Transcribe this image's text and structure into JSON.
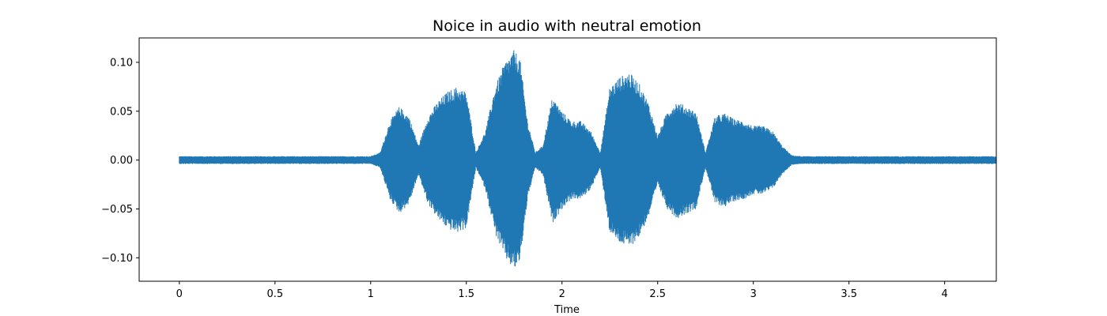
{
  "chart_data": {
    "type": "area",
    "title": "Noice in audio with neutral emotion",
    "xlabel": "Time",
    "ylabel": "",
    "xlim": [
      -0.21,
      4.27
    ],
    "ylim": [
      -0.124,
      0.125
    ],
    "x_ticks": [
      0,
      0.5,
      1,
      1.5,
      2,
      2.5,
      3,
      3.5,
      4
    ],
    "x_tick_labels": [
      "0",
      "0.5",
      "1",
      "1.5",
      "2",
      "2.5",
      "3",
      "3.5",
      "4"
    ],
    "y_ticks": [
      -0.1,
      -0.05,
      0.0,
      0.05,
      0.1
    ],
    "y_tick_labels": [
      "−0.10",
      "−0.05",
      "0.00",
      "0.05",
      "0.10"
    ],
    "grid": false,
    "legend": "none",
    "color": "#1f77b4",
    "series": [
      {
        "x": [
          0.0,
          0.5,
          1.0,
          1.05,
          1.1,
          1.15,
          1.2,
          1.25,
          1.3,
          1.35,
          1.4,
          1.45,
          1.5,
          1.55,
          1.6,
          1.65,
          1.7,
          1.75,
          1.78,
          1.82,
          1.86,
          1.9,
          1.95,
          2.0,
          2.05,
          2.1,
          2.15,
          2.2,
          2.25,
          2.3,
          2.35,
          2.4,
          2.45,
          2.5,
          2.55,
          2.6,
          2.65,
          2.7,
          2.75,
          2.8,
          2.85,
          2.9,
          2.95,
          3.0,
          3.05,
          3.1,
          3.15,
          3.2,
          3.25,
          3.3,
          3.5,
          4.0,
          4.27
        ],
        "envelope": [
          0.004,
          0.004,
          0.004,
          0.008,
          0.04,
          0.055,
          0.045,
          0.015,
          0.045,
          0.06,
          0.07,
          0.075,
          0.07,
          0.008,
          0.03,
          0.075,
          0.1,
          0.113,
          0.105,
          0.04,
          0.008,
          0.015,
          0.065,
          0.05,
          0.04,
          0.04,
          0.03,
          0.008,
          0.075,
          0.085,
          0.09,
          0.08,
          0.06,
          0.025,
          0.05,
          0.06,
          0.055,
          0.05,
          0.008,
          0.045,
          0.048,
          0.042,
          0.04,
          0.035,
          0.035,
          0.03,
          0.015,
          0.005,
          0.004,
          0.004,
          0.004,
          0.004,
          0.004
        ]
      }
    ]
  }
}
